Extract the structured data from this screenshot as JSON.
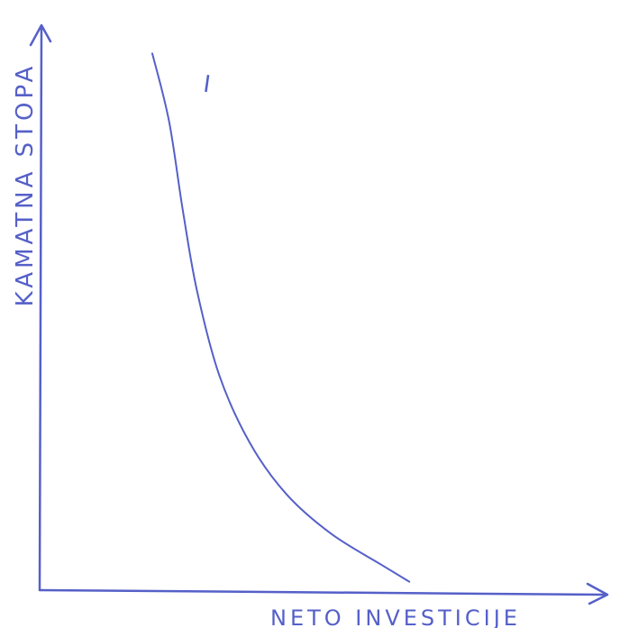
{
  "chart_data": {
    "type": "line",
    "title": "",
    "xlabel": "NETO INVESTICIJE",
    "ylabel": "KAMATNA STOPA",
    "curve_label": "I",
    "grid": false,
    "legend": "none",
    "xlim": [
      0,
      10
    ],
    "ylim": [
      0,
      10
    ],
    "series": [
      {
        "x": [
          2.0,
          2.3,
          2.55,
          2.8,
          3.2,
          3.75,
          4.4,
          5.2,
          6.1,
          6.6
        ],
        "y": [
          9.5,
          8.3,
          6.7,
          5.3,
          3.8,
          2.6,
          1.7,
          1.0,
          0.45,
          0.15
        ]
      }
    ]
  },
  "colors": {
    "ink": "#5560c8"
  }
}
